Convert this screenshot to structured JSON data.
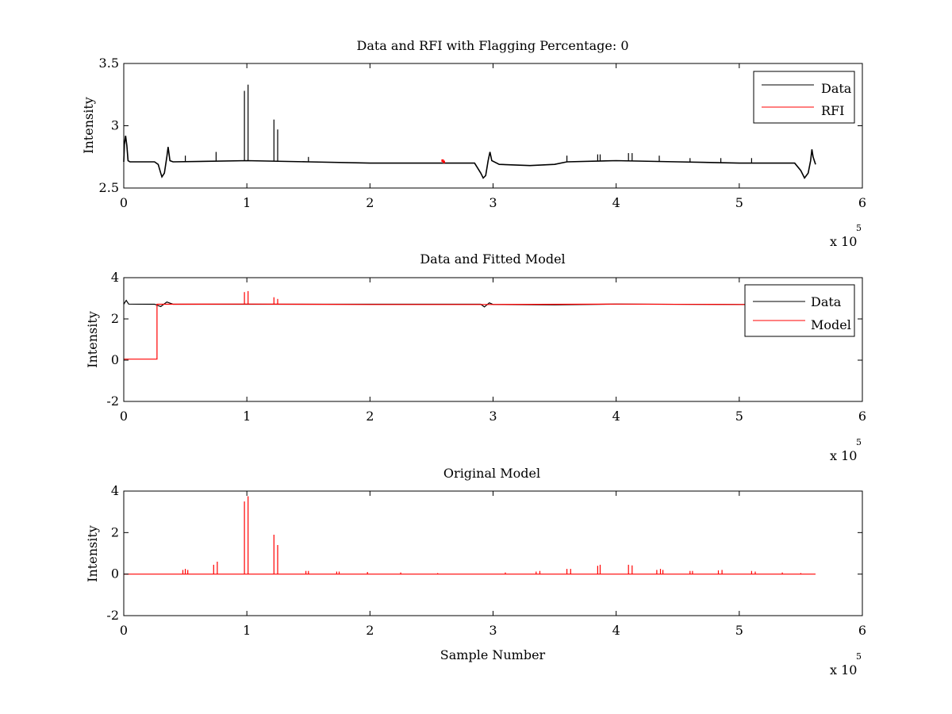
{
  "figure": {
    "background": "#ffffff"
  },
  "colors": {
    "data": "#000000",
    "rfi": "#ff0000",
    "model": "#ff0000",
    "axes": "#000000"
  },
  "chart_data": [
    {
      "id": "top",
      "type": "line",
      "title": "Data and RFI with Flagging Percentage: 0",
      "xlabel": "",
      "ylabel": "Intensity",
      "xlim": [
        0,
        6
      ],
      "ylim": [
        2.5,
        3.5
      ],
      "xticks": [
        0,
        1,
        2,
        3,
        4,
        5,
        6
      ],
      "yticks": [
        2.5,
        3,
        3.5
      ],
      "xtick_labels": [
        "0",
        "1",
        "2",
        "3",
        "4",
        "5",
        "6"
      ],
      "ytick_labels": [
        "2.5",
        "3",
        "3.5"
      ],
      "x_multiplier": {
        "base": "x 10",
        "exponent": "5"
      },
      "legend": {
        "position": "top-right",
        "entries": [
          {
            "label": "Data",
            "color": "#000000"
          },
          {
            "label": "RFI",
            "color": "#ff0000"
          }
        ]
      },
      "grid": false,
      "series": [
        {
          "name": "Data",
          "color": "#000000",
          "baseline": [
            [
              0.0,
              2.71
            ],
            [
              0.005,
              2.85
            ],
            [
              0.015,
              2.92
            ],
            [
              0.025,
              2.84
            ],
            [
              0.035,
              2.72
            ],
            [
              0.05,
              2.71
            ],
            [
              0.25,
              2.71
            ],
            [
              0.28,
              2.69
            ],
            [
              0.3,
              2.62
            ],
            [
              0.31,
              2.59
            ],
            [
              0.33,
              2.62
            ],
            [
              0.35,
              2.75
            ],
            [
              0.36,
              2.83
            ],
            [
              0.375,
              2.72
            ],
            [
              0.4,
              2.71
            ],
            [
              1.0,
              2.72
            ],
            [
              1.5,
              2.71
            ],
            [
              2.0,
              2.7
            ],
            [
              2.5,
              2.7
            ],
            [
              2.85,
              2.7
            ],
            [
              2.9,
              2.62
            ],
            [
              2.92,
              2.58
            ],
            [
              2.94,
              2.6
            ],
            [
              2.96,
              2.72
            ],
            [
              2.975,
              2.79
            ],
            [
              2.99,
              2.72
            ],
            [
              3.05,
              2.69
            ],
            [
              3.3,
              2.68
            ],
            [
              3.5,
              2.69
            ],
            [
              3.6,
              2.71
            ],
            [
              4.0,
              2.72
            ],
            [
              4.5,
              2.71
            ],
            [
              5.0,
              2.7
            ],
            [
              5.45,
              2.7
            ],
            [
              5.5,
              2.64
            ],
            [
              5.53,
              2.58
            ],
            [
              5.56,
              2.62
            ],
            [
              5.58,
              2.72
            ],
            [
              5.59,
              2.81
            ],
            [
              5.6,
              2.75
            ],
            [
              5.62,
              2.69
            ]
          ],
          "spikes": [
            [
              0.5,
              2.76
            ],
            [
              0.75,
              2.79
            ],
            [
              0.98,
              3.28
            ],
            [
              1.01,
              3.33
            ],
            [
              1.22,
              3.05
            ],
            [
              1.25,
              2.97
            ],
            [
              1.5,
              2.75
            ],
            [
              3.6,
              2.76
            ],
            [
              3.85,
              2.77
            ],
            [
              3.87,
              2.77
            ],
            [
              4.1,
              2.78
            ],
            [
              4.13,
              2.78
            ],
            [
              4.35,
              2.76
            ],
            [
              4.6,
              2.74
            ],
            [
              4.85,
              2.74
            ],
            [
              5.1,
              2.74
            ]
          ]
        },
        {
          "name": "RFI",
          "color": "#ff0000",
          "baseline": [],
          "spikes": [
            [
              2.59,
              2.73
            ],
            [
              2.6,
              2.72
            ]
          ]
        }
      ]
    },
    {
      "id": "middle",
      "type": "line",
      "title": "Data and Fitted Model",
      "xlabel": "",
      "ylabel": "Intensity",
      "xlim": [
        0,
        6
      ],
      "ylim": [
        -2,
        4
      ],
      "xticks": [
        0,
        1,
        2,
        3,
        4,
        5,
        6
      ],
      "yticks": [
        -2,
        0,
        2,
        4
      ],
      "xtick_labels": [
        "0",
        "1",
        "2",
        "3",
        "4",
        "5",
        "6"
      ],
      "ytick_labels": [
        "-2",
        "0",
        "2",
        "4"
      ],
      "x_multiplier": {
        "base": "x 10",
        "exponent": "5"
      },
      "legend": {
        "position": "top-right",
        "entries": [
          {
            "label": "Data",
            "color": "#000000"
          },
          {
            "label": "Model",
            "color": "#ff0000"
          }
        ]
      },
      "grid": false,
      "series": [
        {
          "name": "Data",
          "color": "#000000",
          "baseline": [
            [
              0.0,
              2.71
            ],
            [
              0.02,
              2.9
            ],
            [
              0.04,
              2.72
            ],
            [
              0.25,
              2.71
            ],
            [
              0.3,
              2.6
            ],
            [
              0.35,
              2.82
            ],
            [
              0.4,
              2.71
            ],
            [
              2.9,
              2.71
            ],
            [
              2.93,
              2.58
            ],
            [
              2.97,
              2.78
            ],
            [
              3.0,
              2.7
            ],
            [
              3.5,
              2.68
            ],
            [
              4.0,
              2.72
            ],
            [
              5.0,
              2.7
            ],
            [
              5.62,
              2.7
            ]
          ],
          "spikes": []
        },
        {
          "name": "Model",
          "color": "#ff0000",
          "baseline": [
            [
              0.0,
              0.05
            ],
            [
              0.27,
              0.05
            ],
            [
              0.27,
              2.71
            ],
            [
              1.0,
              2.72
            ],
            [
              2.0,
              2.7
            ],
            [
              3.0,
              2.7
            ],
            [
              4.0,
              2.72
            ],
            [
              5.0,
              2.7
            ],
            [
              5.62,
              2.7
            ]
          ],
          "spikes": [
            [
              0.98,
              3.3
            ],
            [
              1.01,
              3.35
            ],
            [
              1.22,
              3.05
            ],
            [
              1.25,
              2.97
            ]
          ]
        }
      ]
    },
    {
      "id": "bottom",
      "type": "line",
      "title": "Original Model",
      "xlabel": "Sample Number",
      "ylabel": "Intensity",
      "xlim": [
        0,
        6
      ],
      "ylim": [
        -2,
        4
      ],
      "xticks": [
        0,
        1,
        2,
        3,
        4,
        5,
        6
      ],
      "yticks": [
        -2,
        0,
        2,
        4
      ],
      "xtick_labels": [
        "0",
        "1",
        "2",
        "3",
        "4",
        "5",
        "6"
      ],
      "ytick_labels": [
        "-2",
        "0",
        "2",
        "4"
      ],
      "x_multiplier": {
        "base": "x 10",
        "exponent": "5"
      },
      "legend": null,
      "grid": false,
      "series": [
        {
          "name": "Model",
          "color": "#ff0000",
          "baseline": [
            [
              0.0,
              0.0
            ],
            [
              5.62,
              0.0
            ]
          ],
          "spikes": [
            [
              0.48,
              0.2
            ],
            [
              0.5,
              0.25
            ],
            [
              0.52,
              0.2
            ],
            [
              0.73,
              0.45
            ],
            [
              0.76,
              0.6
            ],
            [
              0.98,
              3.5
            ],
            [
              1.01,
              3.75
            ],
            [
              1.22,
              1.9
            ],
            [
              1.25,
              1.4
            ],
            [
              1.48,
              0.15
            ],
            [
              1.5,
              0.15
            ],
            [
              1.73,
              0.12
            ],
            [
              1.75,
              0.12
            ],
            [
              1.98,
              0.1
            ],
            [
              2.25,
              0.08
            ],
            [
              2.55,
              0.05
            ],
            [
              3.1,
              0.08
            ],
            [
              3.35,
              0.12
            ],
            [
              3.38,
              0.15
            ],
            [
              3.6,
              0.25
            ],
            [
              3.63,
              0.25
            ],
            [
              3.85,
              0.4
            ],
            [
              3.87,
              0.45
            ],
            [
              4.1,
              0.45
            ],
            [
              4.13,
              0.42
            ],
            [
              4.33,
              0.2
            ],
            [
              4.36,
              0.25
            ],
            [
              4.38,
              0.2
            ],
            [
              4.6,
              0.15
            ],
            [
              4.62,
              0.15
            ],
            [
              4.83,
              0.18
            ],
            [
              4.86,
              0.2
            ],
            [
              5.1,
              0.15
            ],
            [
              5.13,
              0.12
            ],
            [
              5.35,
              0.08
            ],
            [
              5.5,
              0.05
            ]
          ]
        }
      ]
    }
  ]
}
